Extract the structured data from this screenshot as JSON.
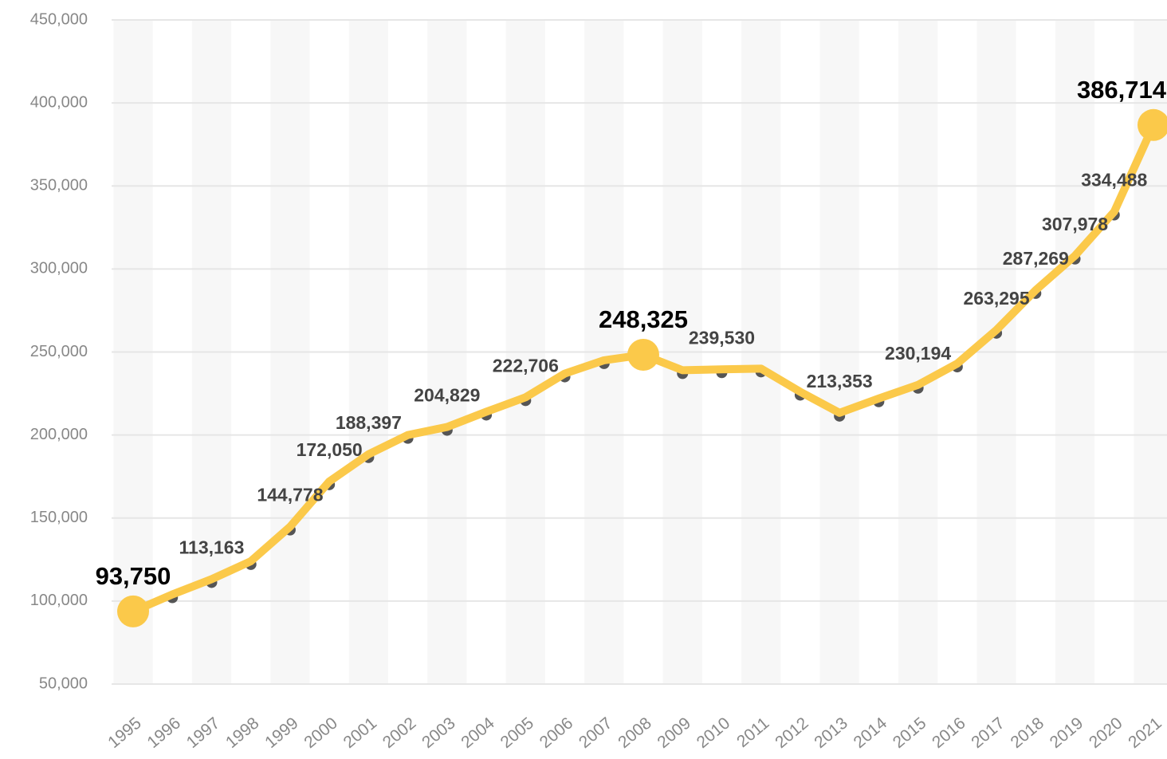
{
  "chart_data": {
    "type": "line",
    "categories": [
      "1995",
      "1996",
      "1997",
      "1998",
      "1999",
      "2000",
      "2001",
      "2002",
      "2003",
      "2004",
      "2005",
      "2006",
      "2007",
      "2008",
      "2009",
      "2010",
      "2011",
      "2012",
      "2013",
      "2014",
      "2015",
      "2016",
      "2017",
      "2018",
      "2019",
      "2020",
      "2021"
    ],
    "series": [
      {
        "color": "#fbc94a",
        "values": [
          93750,
          104000,
          113163,
          124000,
          144778,
          172050,
          188397,
          200000,
          204829,
          214000,
          222706,
          237000,
          245000,
          248325,
          239000,
          239530,
          240000,
          226000,
          213353,
          222000,
          230194,
          243000,
          263295,
          287269,
          307978,
          334488,
          386714
        ],
        "value_labels": [
          "93,750",
          null,
          "113,163",
          null,
          "144,778",
          "172,050",
          "188,397",
          null,
          "204,829",
          null,
          "222,706",
          null,
          null,
          "248,325",
          null,
          "239,530",
          null,
          null,
          "213,353",
          null,
          "230,194",
          null,
          "263,295",
          "287,269",
          "307,978",
          "334,488",
          "386,714"
        ]
      }
    ],
    "highlighted": [
      0,
      13,
      26
    ],
    "ylim": [
      50000,
      450000
    ],
    "yticks": [
      {
        "value": 50000,
        "label": "50,000"
      },
      {
        "value": 100000,
        "label": "100,000"
      },
      {
        "value": 150000,
        "label": "150,000"
      },
      {
        "value": 200000,
        "label": "200,000"
      },
      {
        "value": 250000,
        "label": "250,000"
      },
      {
        "value": 300000,
        "label": "300,000"
      },
      {
        "value": 350000,
        "label": "350,000"
      },
      {
        "value": 400000,
        "label": "400,000"
      },
      {
        "value": 450000,
        "label": "450,000"
      }
    ],
    "grid": true
  }
}
